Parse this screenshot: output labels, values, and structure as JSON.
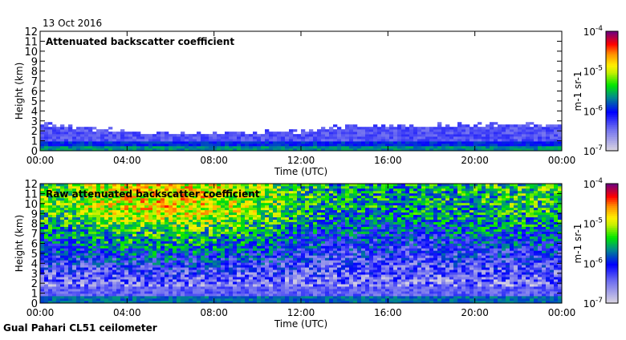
{
  "date": "13 Oct 2016",
  "footer": "Gual Pahari CL51 ceilometer",
  "chart_data": [
    {
      "type": "heatmap",
      "title": "Attenuated backscatter coefficient",
      "xlabel": "Time (UTC)",
      "ylabel": "Height (km)",
      "xticks": [
        "00:00",
        "04:00",
        "08:00",
        "12:00",
        "16:00",
        "20:00",
        "00:00"
      ],
      "yticks": [
        "0",
        "1",
        "2",
        "3",
        "4",
        "5",
        "6",
        "7",
        "8",
        "9",
        "10",
        "11",
        "12"
      ],
      "ylim": [
        0,
        12
      ],
      "xlim_hours": [
        0,
        24
      ],
      "signal_top_km_by_hour": {
        "hours": [
          0,
          2,
          4,
          6,
          8,
          10,
          12,
          14,
          16,
          18,
          20,
          22,
          24
        ],
        "values": [
          2.7,
          2.3,
          1.9,
          1.8,
          1.7,
          1.9,
          2.0,
          2.4,
          2.6,
          2.6,
          2.6,
          2.7,
          2.6
        ]
      },
      "surface_layer_log10_beta": -5.8,
      "colorbar": {
        "label": "m-1 sr-1",
        "tick_labels": [
          "10-7",
          "10-6",
          "10-5",
          "10-4"
        ],
        "range_log10": [
          -7,
          -4
        ]
      }
    },
    {
      "type": "heatmap",
      "title": "Raw attenuated backscatter coefficient",
      "xlabel": "Time (UTC)",
      "ylabel": "Height (km)",
      "xticks": [
        "00:00",
        "04:00",
        "08:00",
        "12:00",
        "16:00",
        "20:00",
        "00:00"
      ],
      "yticks": [
        "0",
        "1",
        "2",
        "3",
        "4",
        "5",
        "6",
        "7",
        "8",
        "9",
        "10",
        "11",
        "12"
      ],
      "ylim": [
        0,
        12
      ],
      "xlim_hours": [
        0,
        24
      ],
      "upper_noise_log10_by_hour": {
        "hours": [
          0,
          2,
          4,
          6,
          8,
          10,
          12,
          14,
          16,
          18,
          20,
          22,
          24
        ],
        "values": [
          -5.3,
          -5.1,
          -4.9,
          -4.8,
          -4.9,
          -5.1,
          -5.4,
          -5.6,
          -5.6,
          -5.6,
          -5.5,
          -5.4,
          -5.4
        ]
      },
      "colorbar": {
        "label": "m-1 sr-1",
        "tick_labels": [
          "10-7",
          "10-6",
          "10-5",
          "10-4"
        ],
        "range_log10": [
          -7,
          -4
        ]
      }
    }
  ]
}
